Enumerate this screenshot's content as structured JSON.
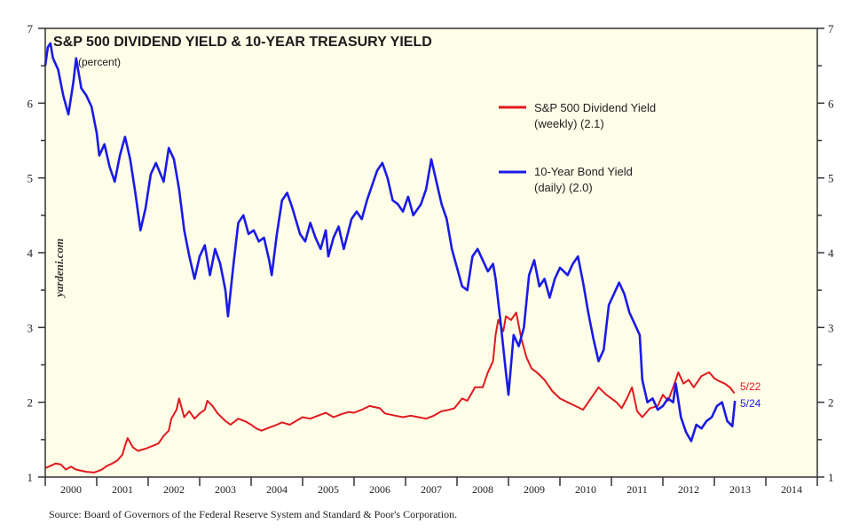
{
  "chart_data": {
    "type": "line",
    "title": "S&P 500 DIVIDEND YIELD & 10-YEAR TREASURY YIELD",
    "subtitle": "(percent)",
    "xlabel": "",
    "ylabel": "",
    "xlim": [
      2000,
      2015
    ],
    "ylim": [
      1,
      7
    ],
    "y_ticks": [
      1,
      2,
      3,
      4,
      5,
      6,
      7
    ],
    "x_tick_labels": [
      "2000",
      "2001",
      "2002",
      "2003",
      "2004",
      "2005",
      "2006",
      "2007",
      "2008",
      "2009",
      "2010",
      "2011",
      "2012",
      "2013",
      "2014"
    ],
    "grid": false,
    "legend_position": "top-right",
    "watermark": "yardeni.com",
    "source": "Source: Board of Governors of the Federal Reserve System and Standard & Poor's Corporation.",
    "series": [
      {
        "name": "S&P 500 Dividend Yield",
        "legend_line1": "S&P 500 Dividend Yield",
        "legend_line2": "(weekly) (2.1)",
        "color": "#e0191e",
        "end_label": "5/22",
        "points": [
          [
            2000.0,
            1.12
          ],
          [
            2000.1,
            1.15
          ],
          [
            2000.2,
            1.18
          ],
          [
            2000.3,
            1.17
          ],
          [
            2000.4,
            1.1
          ],
          [
            2000.5,
            1.14
          ],
          [
            2000.6,
            1.1
          ],
          [
            2000.8,
            1.07
          ],
          [
            2000.95,
            1.06
          ],
          [
            2001.1,
            1.1
          ],
          [
            2001.2,
            1.15
          ],
          [
            2001.3,
            1.18
          ],
          [
            2001.4,
            1.22
          ],
          [
            2001.5,
            1.3
          ],
          [
            2001.55,
            1.42
          ],
          [
            2001.6,
            1.52
          ],
          [
            2001.7,
            1.4
          ],
          [
            2001.8,
            1.35
          ],
          [
            2001.95,
            1.38
          ],
          [
            2002.1,
            1.42
          ],
          [
            2002.2,
            1.45
          ],
          [
            2002.3,
            1.55
          ],
          [
            2002.4,
            1.62
          ],
          [
            2002.45,
            1.78
          ],
          [
            2002.55,
            1.9
          ],
          [
            2002.6,
            2.05
          ],
          [
            2002.7,
            1.8
          ],
          [
            2002.8,
            1.88
          ],
          [
            2002.9,
            1.78
          ],
          [
            2003.0,
            1.85
          ],
          [
            2003.1,
            1.9
          ],
          [
            2003.15,
            2.02
          ],
          [
            2003.25,
            1.95
          ],
          [
            2003.35,
            1.85
          ],
          [
            2003.5,
            1.75
          ],
          [
            2003.6,
            1.7
          ],
          [
            2003.75,
            1.78
          ],
          [
            2003.9,
            1.74
          ],
          [
            2004.0,
            1.7
          ],
          [
            2004.1,
            1.65
          ],
          [
            2004.2,
            1.62
          ],
          [
            2004.35,
            1.66
          ],
          [
            2004.5,
            1.7
          ],
          [
            2004.6,
            1.73
          ],
          [
            2004.75,
            1.7
          ],
          [
            2004.9,
            1.76
          ],
          [
            2005.0,
            1.8
          ],
          [
            2005.15,
            1.78
          ],
          [
            2005.3,
            1.82
          ],
          [
            2005.45,
            1.86
          ],
          [
            2005.6,
            1.8
          ],
          [
            2005.75,
            1.84
          ],
          [
            2005.9,
            1.87
          ],
          [
            2006.0,
            1.86
          ],
          [
            2006.15,
            1.9
          ],
          [
            2006.3,
            1.95
          ],
          [
            2006.5,
            1.92
          ],
          [
            2006.6,
            1.85
          ],
          [
            2006.8,
            1.82
          ],
          [
            2006.95,
            1.8
          ],
          [
            2007.1,
            1.82
          ],
          [
            2007.25,
            1.8
          ],
          [
            2007.4,
            1.78
          ],
          [
            2007.55,
            1.82
          ],
          [
            2007.7,
            1.88
          ],
          [
            2007.85,
            1.9
          ],
          [
            2007.95,
            1.92
          ],
          [
            2008.1,
            2.05
          ],
          [
            2008.2,
            2.02
          ],
          [
            2008.35,
            2.2
          ],
          [
            2008.5,
            2.2
          ],
          [
            2008.6,
            2.4
          ],
          [
            2008.7,
            2.55
          ],
          [
            2008.75,
            2.9
          ],
          [
            2008.8,
            3.1
          ],
          [
            2008.9,
            2.95
          ],
          [
            2008.95,
            3.15
          ],
          [
            2009.05,
            3.1
          ],
          [
            2009.15,
            3.2
          ],
          [
            2009.25,
            2.85
          ],
          [
            2009.35,
            2.6
          ],
          [
            2009.45,
            2.45
          ],
          [
            2009.55,
            2.4
          ],
          [
            2009.7,
            2.3
          ],
          [
            2009.85,
            2.15
          ],
          [
            2010.0,
            2.05
          ],
          [
            2010.15,
            2.0
          ],
          [
            2010.3,
            1.95
          ],
          [
            2010.45,
            1.9
          ],
          [
            2010.6,
            2.05
          ],
          [
            2010.75,
            2.2
          ],
          [
            2010.9,
            2.1
          ],
          [
            2011.0,
            2.05
          ],
          [
            2011.1,
            2.0
          ],
          [
            2011.2,
            1.92
          ],
          [
            2011.3,
            2.05
          ],
          [
            2011.4,
            2.2
          ],
          [
            2011.5,
            1.88
          ],
          [
            2011.6,
            1.8
          ],
          [
            2011.75,
            1.92
          ],
          [
            2011.9,
            1.95
          ],
          [
            2012.0,
            2.1
          ],
          [
            2012.1,
            2.02
          ],
          [
            2012.2,
            2.2
          ],
          [
            2012.3,
            2.4
          ],
          [
            2012.4,
            2.25
          ],
          [
            2012.5,
            2.3
          ],
          [
            2012.6,
            2.2
          ],
          [
            2012.75,
            2.35
          ],
          [
            2012.9,
            2.4
          ],
          [
            2013.0,
            2.32
          ],
          [
            2013.1,
            2.28
          ],
          [
            2013.2,
            2.25
          ],
          [
            2013.3,
            2.2
          ],
          [
            2013.39,
            2.12
          ]
        ]
      },
      {
        "name": "10-Year Bond Yield",
        "legend_line1": "10-Year Bond Yield",
        "legend_line2": "(daily) (2.0)",
        "color": "#1a1ae6",
        "end_label": "5/24",
        "points": [
          [
            2000.0,
            6.5
          ],
          [
            2000.05,
            6.75
          ],
          [
            2000.1,
            6.8
          ],
          [
            2000.15,
            6.6
          ],
          [
            2000.25,
            6.45
          ],
          [
            2000.35,
            6.1
          ],
          [
            2000.45,
            5.85
          ],
          [
            2000.55,
            6.3
          ],
          [
            2000.6,
            6.6
          ],
          [
            2000.7,
            6.2
          ],
          [
            2000.8,
            6.1
          ],
          [
            2000.9,
            5.95
          ],
          [
            2001.0,
            5.6
          ],
          [
            2001.05,
            5.3
          ],
          [
            2001.15,
            5.45
          ],
          [
            2001.25,
            5.15
          ],
          [
            2001.35,
            4.95
          ],
          [
            2001.45,
            5.3
          ],
          [
            2001.55,
            5.55
          ],
          [
            2001.65,
            5.25
          ],
          [
            2001.75,
            4.8
          ],
          [
            2001.85,
            4.3
          ],
          [
            2001.95,
            4.6
          ],
          [
            2002.05,
            5.05
          ],
          [
            2002.15,
            5.2
          ],
          [
            2002.3,
            4.95
          ],
          [
            2002.4,
            5.4
          ],
          [
            2002.5,
            5.25
          ],
          [
            2002.6,
            4.85
          ],
          [
            2002.7,
            4.3
          ],
          [
            2002.8,
            3.95
          ],
          [
            2002.9,
            3.65
          ],
          [
            2003.0,
            3.95
          ],
          [
            2003.1,
            4.1
          ],
          [
            2003.2,
            3.7
          ],
          [
            2003.3,
            4.05
          ],
          [
            2003.4,
            3.85
          ],
          [
            2003.5,
            3.5
          ],
          [
            2003.55,
            3.15
          ],
          [
            2003.65,
            3.8
          ],
          [
            2003.75,
            4.4
          ],
          [
            2003.85,
            4.5
          ],
          [
            2003.95,
            4.25
          ],
          [
            2004.05,
            4.3
          ],
          [
            2004.15,
            4.15
          ],
          [
            2004.25,
            4.2
          ],
          [
            2004.35,
            3.9
          ],
          [
            2004.4,
            3.7
          ],
          [
            2004.5,
            4.25
          ],
          [
            2004.6,
            4.7
          ],
          [
            2004.7,
            4.8
          ],
          [
            2004.8,
            4.6
          ],
          [
            2004.95,
            4.25
          ],
          [
            2005.05,
            4.15
          ],
          [
            2005.15,
            4.4
          ],
          [
            2005.25,
            4.2
          ],
          [
            2005.35,
            4.05
          ],
          [
            2005.45,
            4.3
          ],
          [
            2005.5,
            3.95
          ],
          [
            2005.6,
            4.2
          ],
          [
            2005.7,
            4.35
          ],
          [
            2005.8,
            4.05
          ],
          [
            2005.95,
            4.45
          ],
          [
            2006.05,
            4.55
          ],
          [
            2006.15,
            4.45
          ],
          [
            2006.25,
            4.7
          ],
          [
            2006.35,
            4.9
          ],
          [
            2006.45,
            5.1
          ],
          [
            2006.55,
            5.2
          ],
          [
            2006.65,
            5.0
          ],
          [
            2006.75,
            4.7
          ],
          [
            2006.85,
            4.65
          ],
          [
            2006.95,
            4.55
          ],
          [
            2007.05,
            4.75
          ],
          [
            2007.15,
            4.5
          ],
          [
            2007.3,
            4.65
          ],
          [
            2007.4,
            4.85
          ],
          [
            2007.5,
            5.25
          ],
          [
            2007.6,
            4.95
          ],
          [
            2007.7,
            4.65
          ],
          [
            2007.8,
            4.45
          ],
          [
            2007.9,
            4.05
          ],
          [
            2008.0,
            3.8
          ],
          [
            2008.1,
            3.55
          ],
          [
            2008.2,
            3.5
          ],
          [
            2008.3,
            3.95
          ],
          [
            2008.4,
            4.05
          ],
          [
            2008.5,
            3.9
          ],
          [
            2008.6,
            3.75
          ],
          [
            2008.7,
            3.85
          ],
          [
            2008.75,
            3.65
          ],
          [
            2008.85,
            3.05
          ],
          [
            2008.95,
            2.4
          ],
          [
            2009.0,
            2.1
          ],
          [
            2009.1,
            2.9
          ],
          [
            2009.2,
            2.75
          ],
          [
            2009.3,
            3.0
          ],
          [
            2009.4,
            3.7
          ],
          [
            2009.5,
            3.9
          ],
          [
            2009.6,
            3.55
          ],
          [
            2009.7,
            3.65
          ],
          [
            2009.8,
            3.4
          ],
          [
            2009.9,
            3.65
          ],
          [
            2010.0,
            3.8
          ],
          [
            2010.15,
            3.7
          ],
          [
            2010.25,
            3.85
          ],
          [
            2010.35,
            3.95
          ],
          [
            2010.45,
            3.6
          ],
          [
            2010.55,
            3.2
          ],
          [
            2010.65,
            2.85
          ],
          [
            2010.75,
            2.55
          ],
          [
            2010.85,
            2.7
          ],
          [
            2010.95,
            3.3
          ],
          [
            2011.05,
            3.45
          ],
          [
            2011.15,
            3.6
          ],
          [
            2011.25,
            3.45
          ],
          [
            2011.35,
            3.2
          ],
          [
            2011.45,
            3.05
          ],
          [
            2011.55,
            2.9
          ],
          [
            2011.6,
            2.3
          ],
          [
            2011.7,
            2.0
          ],
          [
            2011.8,
            2.05
          ],
          [
            2011.9,
            1.9
          ],
          [
            2012.0,
            1.95
          ],
          [
            2012.1,
            2.05
          ],
          [
            2012.2,
            2.0
          ],
          [
            2012.25,
            2.25
          ],
          [
            2012.35,
            1.8
          ],
          [
            2012.45,
            1.6
          ],
          [
            2012.55,
            1.48
          ],
          [
            2012.65,
            1.7
          ],
          [
            2012.75,
            1.65
          ],
          [
            2012.85,
            1.75
          ],
          [
            2012.95,
            1.8
          ],
          [
            2013.05,
            1.95
          ],
          [
            2013.15,
            2.0
          ],
          [
            2013.25,
            1.75
          ],
          [
            2013.35,
            1.68
          ],
          [
            2013.4,
            2.02
          ]
        ]
      }
    ]
  }
}
